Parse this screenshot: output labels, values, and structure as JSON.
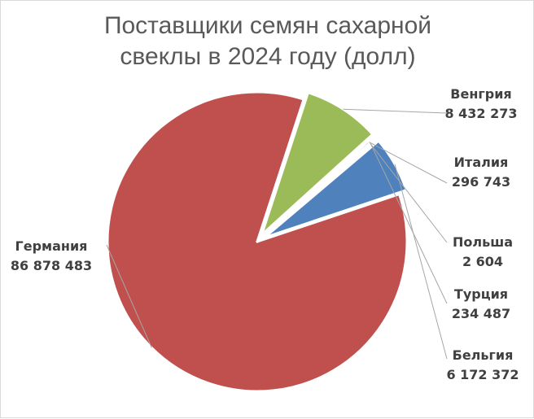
{
  "chart_data": {
    "type": "pie",
    "title_lines": [
      "Поставщики семян сахарной",
      "свеклы в 2024 году (долл)"
    ],
    "slices": [
      {
        "name": "Германия",
        "value_label": "86 878 483",
        "value": 86878483,
        "color": "#C0504D"
      },
      {
        "name": "Венгрия",
        "value_label": "8 432 273",
        "value": 8432273,
        "color": "#9BBB59"
      },
      {
        "name": "Италия",
        "value_label": "296 743",
        "value": 296743,
        "color": "#8064A2"
      },
      {
        "name": "Польша",
        "value_label": "2 604",
        "value": 2604,
        "color": "#4BACC6"
      },
      {
        "name": "Турция",
        "value_label": "234 487",
        "value": 234487,
        "color": "#F79646"
      },
      {
        "name": "Бельгия",
        "value_label": "6 172 372",
        "value": 6172372,
        "color": "#4F81BD"
      }
    ],
    "legend": "none",
    "data_labels": "outside-with-leader-lines"
  }
}
